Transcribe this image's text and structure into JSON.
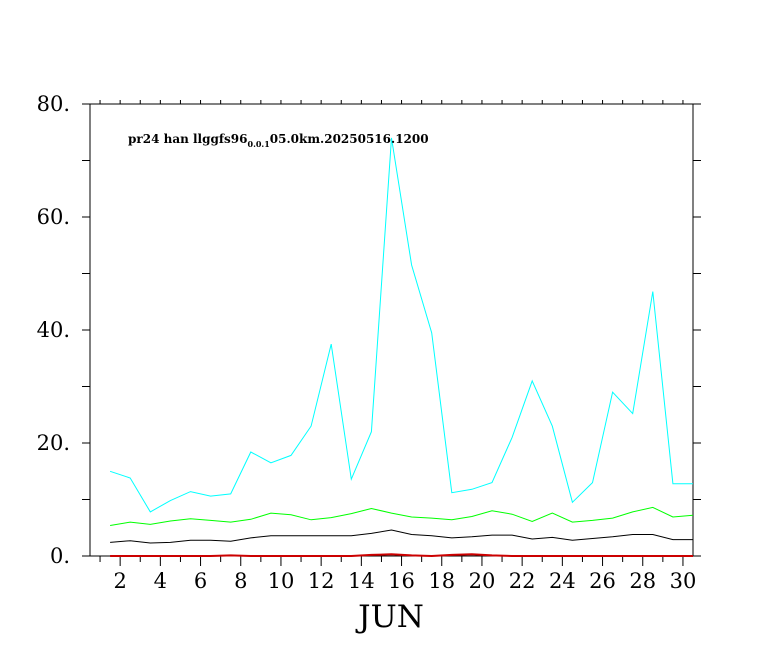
{
  "chart_data": {
    "type": "line",
    "title_parts": [
      "pr24 han llggfs96",
      "0.0.1",
      "05.0km.20250516.1200"
    ],
    "xlabel": "JUN",
    "x_ticks_minor": [
      1,
      2,
      3,
      4,
      5,
      6,
      7,
      8,
      9,
      10,
      11,
      12,
      13,
      14,
      15,
      16,
      17,
      18,
      19,
      20,
      21,
      22,
      23,
      24,
      25,
      26,
      27,
      28,
      29,
      30
    ],
    "x_ticks_labeled": [
      2,
      4,
      6,
      8,
      10,
      12,
      14,
      16,
      18,
      20,
      22,
      24,
      26,
      28,
      30
    ],
    "xlim": [
      0.5,
      30.5
    ],
    "ylim": [
      0,
      80
    ],
    "y_ticks_major": [
      0,
      20,
      40,
      60,
      80
    ],
    "y_tick_labels": [
      "0.",
      "20.",
      "40.",
      "60.",
      "80."
    ],
    "y_ticks_minor": [
      10,
      30,
      50,
      70
    ],
    "x": [
      1.5,
      2.5,
      3.5,
      4.5,
      5.5,
      6.5,
      7.5,
      8.5,
      9.5,
      10.5,
      11.5,
      12.5,
      13.5,
      14.5,
      15.5,
      16.5,
      17.5,
      18.5,
      19.5,
      20.5,
      21.5,
      22.5,
      23.5,
      24.5,
      25.5,
      26.5,
      27.5,
      28.5,
      29.5,
      30.5
    ],
    "series": [
      {
        "color": "#00ffff",
        "values": [
          15.0,
          13.8,
          7.8,
          9.8,
          11.4,
          10.6,
          11.0,
          18.4,
          16.5,
          17.8,
          23.0,
          37.5,
          13.6,
          22.0,
          74.0,
          51.5,
          39.5,
          11.2,
          11.8,
          13.0,
          21.0,
          31.0,
          23.0,
          9.5,
          13.0,
          29.0,
          25.2,
          46.8,
          12.8,
          12.8
        ]
      },
      {
        "color": "#00ff00",
        "values": [
          5.4,
          6.0,
          5.6,
          6.2,
          6.6,
          6.3,
          6.0,
          6.5,
          7.6,
          7.3,
          6.4,
          6.8,
          7.5,
          8.4,
          7.6,
          6.9,
          6.7,
          6.4,
          7.0,
          8.0,
          7.4,
          6.1,
          7.6,
          6.0,
          6.3,
          6.7,
          7.8,
          8.6,
          6.9,
          7.2
        ]
      },
      {
        "color": "#000000",
        "values": [
          2.4,
          2.7,
          2.3,
          2.4,
          2.8,
          2.8,
          2.6,
          3.2,
          3.6,
          3.6,
          3.6,
          3.6,
          3.6,
          4.0,
          4.6,
          3.8,
          3.6,
          3.2,
          3.4,
          3.7,
          3.7,
          3.0,
          3.3,
          2.8,
          3.1,
          3.4,
          3.8,
          3.8,
          2.9,
          2.9
        ]
      },
      {
        "color": "#cc0000",
        "values": [
          0,
          0,
          0,
          0,
          0,
          0,
          0.1,
          0,
          0,
          0,
          0,
          0,
          0,
          0.2,
          0.3,
          0.1,
          0,
          0.2,
          0.3,
          0.1,
          0,
          0,
          0,
          0,
          0,
          0,
          0,
          0,
          0,
          0
        ]
      }
    ],
    "grid": false,
    "legend": "none"
  }
}
